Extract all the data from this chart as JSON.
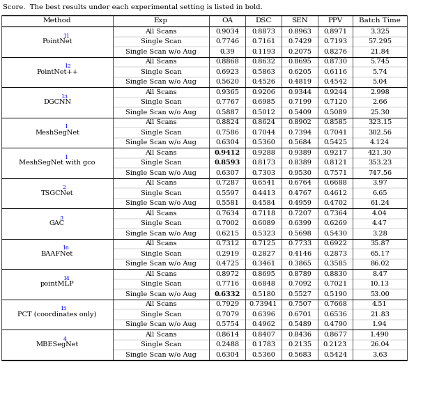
{
  "title_text": "Score.  The best results under each experimental setting is listed in bold.",
  "headers": [
    "Method",
    "Exp",
    "OA",
    "DSC",
    "SEN",
    "PPV",
    "Batch Time"
  ],
  "rows": [
    {
      "method": "PointNet",
      "method_sup": "11",
      "method_suffix": "",
      "exp": [
        "All Scans",
        "Single Scan",
        "Single Scan w/o Aug"
      ],
      "OA": [
        "0.9034",
        "0.7746",
        "0.39"
      ],
      "DSC": [
        "0.8873",
        "0.7161",
        "0.1193"
      ],
      "SEN": [
        "0.8963",
        "0.7429",
        "0.2075"
      ],
      "PPV": [
        "0.8971",
        "0.7193",
        "0.8276"
      ],
      "Batch": [
        "3.325",
        "57.295",
        "21.84"
      ],
      "bold_OA": [
        false,
        false,
        false
      ],
      "bold_DSC": [
        false,
        false,
        false
      ],
      "bold_SEN": [
        false,
        false,
        false
      ],
      "bold_PPV": [
        false,
        false,
        false
      ],
      "bold_Batch": [
        false,
        false,
        false
      ]
    },
    {
      "method": "PointNet++",
      "method_sup": "12",
      "method_suffix": "",
      "exp": [
        "All Scans",
        "Single Scan",
        "Single Scan w/o Aug"
      ],
      "OA": [
        "0.8868",
        "0.6923",
        "0.5620"
      ],
      "DSC": [
        "0.8632",
        "0.5863",
        "0.4526"
      ],
      "SEN": [
        "0.8695",
        "0.6205",
        "0.4819"
      ],
      "PPV": [
        "0.8730",
        "0.6116",
        "0.4542"
      ],
      "Batch": [
        "5.745",
        "5.74",
        "5.04"
      ],
      "bold_OA": [
        false,
        false,
        false
      ],
      "bold_DSC": [
        false,
        false,
        false
      ],
      "bold_SEN": [
        false,
        false,
        false
      ],
      "bold_PPV": [
        false,
        false,
        false
      ],
      "bold_Batch": [
        false,
        false,
        false
      ]
    },
    {
      "method": "DGCNN",
      "method_sup": "13",
      "method_suffix": "",
      "exp": [
        "All Scans",
        "Single Scan",
        "Single Scan w/o Aug"
      ],
      "OA": [
        "0.9365",
        "0.7767",
        "0.5887"
      ],
      "DSC": [
        "0.9206",
        "0.6985",
        "0.5012"
      ],
      "SEN": [
        "0.9344",
        "0.7199",
        "0.5409"
      ],
      "PPV": [
        "0.9244",
        "0.7120",
        "0.5089"
      ],
      "Batch": [
        "2.998",
        "2.66",
        "25.30"
      ],
      "bold_OA": [
        false,
        false,
        false
      ],
      "bold_DSC": [
        false,
        false,
        false
      ],
      "bold_SEN": [
        false,
        false,
        false
      ],
      "bold_PPV": [
        false,
        false,
        false
      ],
      "bold_Batch": [
        false,
        false,
        false
      ]
    },
    {
      "method": "MeshSegNet",
      "method_sup": "1",
      "method_suffix": "",
      "exp": [
        "All Scans",
        "Single Scan",
        "Single Scan w/o Aug"
      ],
      "OA": [
        "0.8824",
        "0.7586",
        "0.6304"
      ],
      "DSC": [
        "0.8624",
        "0.7044",
        "0.5360"
      ],
      "SEN": [
        "0.8902",
        "0.7394",
        "0.5684"
      ],
      "PPV": [
        "0.8585",
        "0.7041",
        "0.5425"
      ],
      "Batch": [
        "323.15",
        "302.56",
        "4.124"
      ],
      "bold_OA": [
        false,
        false,
        false
      ],
      "bold_DSC": [
        false,
        false,
        false
      ],
      "bold_SEN": [
        false,
        false,
        false
      ],
      "bold_PPV": [
        false,
        false,
        false
      ],
      "bold_Batch": [
        false,
        false,
        false
      ]
    },
    {
      "method": "MeshSegNet",
      "method_sup": "1",
      "method_suffix": " with gco",
      "exp": [
        "All Scans",
        "Single Scan",
        "Single Scan w/o Aug"
      ],
      "OA": [
        "0.9412",
        "0.8593",
        "0.6307"
      ],
      "DSC": [
        "0.9288",
        "0.8173",
        "0.7303"
      ],
      "SEN": [
        "0.9389",
        "0.8389",
        "0.9530"
      ],
      "PPV": [
        "0.9217",
        "0.8121",
        "0.7571"
      ],
      "Batch": [
        "421.30",
        "353.23",
        "747.56"
      ],
      "bold_OA": [
        true,
        true,
        false
      ],
      "bold_DSC": [
        false,
        false,
        false
      ],
      "bold_SEN": [
        false,
        false,
        false
      ],
      "bold_PPV": [
        false,
        false,
        false
      ],
      "bold_Batch": [
        false,
        false,
        false
      ]
    },
    {
      "method": "TSGCNet",
      "method_sup": "2",
      "method_suffix": "",
      "exp": [
        "All Scans",
        "Single Scan",
        "Single Scan w/o Aug"
      ],
      "OA": [
        "0.7287",
        "0.5597",
        "0.5581"
      ],
      "DSC": [
        "0.6541",
        "0.4413",
        "0.4584"
      ],
      "SEN": [
        "0.6764",
        "0.4767",
        "0.4959"
      ],
      "PPV": [
        "0.6688",
        "0.4612",
        "0.4702"
      ],
      "Batch": [
        "3.97",
        "6.65",
        "61.24"
      ],
      "bold_OA": [
        false,
        false,
        false
      ],
      "bold_DSC": [
        false,
        false,
        false
      ],
      "bold_SEN": [
        false,
        false,
        false
      ],
      "bold_PPV": [
        false,
        false,
        false
      ],
      "bold_Batch": [
        false,
        false,
        false
      ]
    },
    {
      "method": "GAC",
      "method_sup": "3",
      "method_suffix": "",
      "exp": [
        "All Scans",
        "Single Scan",
        "Single Scan w/o Aug"
      ],
      "OA": [
        "0.7634",
        "0.7002",
        "0.6215"
      ],
      "DSC": [
        "0.7118",
        "0.6089",
        "0.5323"
      ],
      "SEN": [
        "0.7207",
        "0.6399",
        "0.5698"
      ],
      "PPV": [
        "0.7364",
        "0.6269",
        "0.5430"
      ],
      "Batch": [
        "4.04",
        "4.47",
        "3.28"
      ],
      "bold_OA": [
        false,
        false,
        false
      ],
      "bold_DSC": [
        false,
        false,
        false
      ],
      "bold_SEN": [
        false,
        false,
        false
      ],
      "bold_PPV": [
        false,
        false,
        false
      ],
      "bold_Batch": [
        false,
        false,
        false
      ]
    },
    {
      "method": "BAAFNet",
      "method_sup": "16",
      "method_suffix": "",
      "exp": [
        "All Scans",
        "Single Scan",
        "Single Scan w/o Aug"
      ],
      "OA": [
        "0.7312",
        "0.2919",
        "0.4725"
      ],
      "DSC": [
        "0.7125",
        "0.2827",
        "0.3461"
      ],
      "SEN": [
        "0.7733",
        "0.4146",
        "0.3865"
      ],
      "PPV": [
        "0.6922",
        "0.2873",
        "0.3585"
      ],
      "Batch": [
        "35.87",
        "65.17",
        "86.02"
      ],
      "bold_OA": [
        false,
        false,
        false
      ],
      "bold_DSC": [
        false,
        false,
        false
      ],
      "bold_SEN": [
        false,
        false,
        false
      ],
      "bold_PPV": [
        false,
        false,
        false
      ],
      "bold_Batch": [
        false,
        false,
        false
      ]
    },
    {
      "method": "pointMLP",
      "method_sup": "14",
      "method_suffix": "",
      "exp": [
        "All Scans",
        "Single Scan",
        "Single Scan w/o Aug"
      ],
      "OA": [
        "0.8972",
        "0.7716",
        "0.6332"
      ],
      "DSC": [
        "0.8695",
        "0.6848",
        "0.5180"
      ],
      "SEN": [
        "0.8789",
        "0.7092",
        "0.5527"
      ],
      "PPV": [
        "0.8830",
        "0.7021",
        "0.5190"
      ],
      "Batch": [
        "8.47",
        "10.13",
        "53.00"
      ],
      "bold_OA": [
        false,
        false,
        true
      ],
      "bold_DSC": [
        false,
        false,
        false
      ],
      "bold_SEN": [
        false,
        false,
        false
      ],
      "bold_PPV": [
        false,
        false,
        false
      ],
      "bold_Batch": [
        false,
        false,
        false
      ]
    },
    {
      "method": "PCT",
      "method_sup": "15",
      "method_suffix": " (coordinates only)",
      "exp": [
        "All Scans",
        "Single Scan",
        "Single Scan w/o Aug"
      ],
      "OA": [
        "0.7929",
        "0.7079",
        "0.5754"
      ],
      "DSC": [
        "0.73941",
        "0.6396",
        "0.4962"
      ],
      "SEN": [
        "0.7507",
        "0.6701",
        "0.5489"
      ],
      "PPV": [
        "0.7668",
        "0.6536",
        "0.4790"
      ],
      "Batch": [
        "4.51",
        "21.83",
        "1.94"
      ],
      "bold_OA": [
        false,
        false,
        false
      ],
      "bold_DSC": [
        false,
        false,
        false
      ],
      "bold_SEN": [
        false,
        false,
        false
      ],
      "bold_PPV": [
        false,
        false,
        false
      ],
      "bold_Batch": [
        false,
        false,
        false
      ]
    },
    {
      "method": "MBESegNet",
      "method_sup": "4",
      "method_suffix": "",
      "exp": [
        "All Scans",
        "Single Scan",
        "Single Scan w/o Aug"
      ],
      "OA": [
        "0.8614",
        "0.2488",
        "0.6304"
      ],
      "DSC": [
        "0.8407",
        "0.1783",
        "0.5360"
      ],
      "SEN": [
        "0.8436",
        "0.2135",
        "0.5683"
      ],
      "PPV": [
        "0.8677",
        "0.2123",
        "0.5424"
      ],
      "Batch": [
        "1.490",
        "26.04",
        "3.63"
      ],
      "bold_OA": [
        false,
        false,
        false
      ],
      "bold_DSC": [
        false,
        false,
        false
      ],
      "bold_SEN": [
        false,
        false,
        false
      ],
      "bold_PPV": [
        false,
        false,
        false
      ],
      "bold_Batch": [
        false,
        false,
        false
      ]
    }
  ],
  "font_size": 7.0,
  "sup_font_size": 5.5,
  "header_font_size": 7.5,
  "title_font_size": 7.2
}
